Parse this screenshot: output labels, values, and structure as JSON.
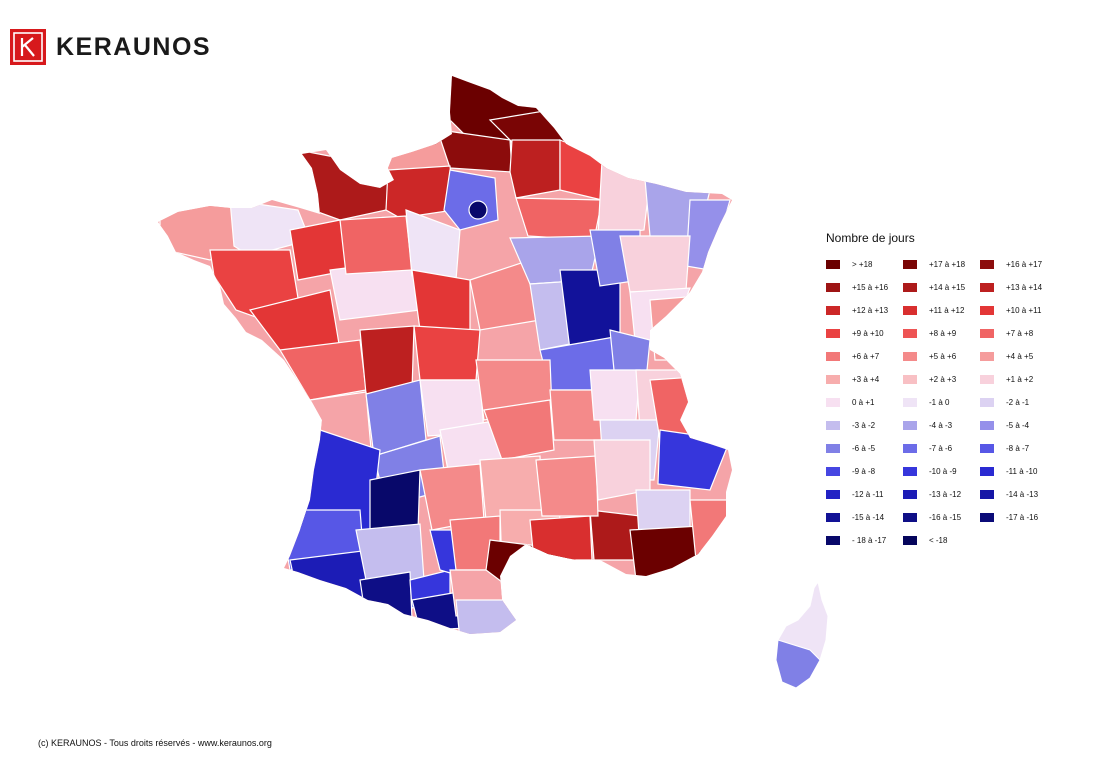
{
  "brand": {
    "name": "KERAUNOS",
    "logo_color": "#d7191c"
  },
  "legend": {
    "title": "Nombre de jours",
    "items": [
      {
        "label": "> +18",
        "color": "#6b0000"
      },
      {
        "label": "+17 à +18",
        "color": "#7a0505"
      },
      {
        "label": "+16 à +17",
        "color": "#8c0c0c"
      },
      {
        "label": "+15 à +16",
        "color": "#9e1414"
      },
      {
        "label": "+14 à +15",
        "color": "#ad1a1a"
      },
      {
        "label": "+13 à +14",
        "color": "#bd2020"
      },
      {
        "label": "+12 à +13",
        "color": "#cc2727"
      },
      {
        "label": "+11 à +12",
        "color": "#d92f2f"
      },
      {
        "label": "+10 à +11",
        "color": "#e33636"
      },
      {
        "label": "+9 à +10",
        "color": "#ea4242"
      },
      {
        "label": "+8 à +9",
        "color": "#ee5454"
      },
      {
        "label": "+7 à +8",
        "color": "#f06464"
      },
      {
        "label": "+6 à +7",
        "color": "#f27878"
      },
      {
        "label": "+5 à +6",
        "color": "#f48a8a"
      },
      {
        "label": "+4 à +5",
        "color": "#f59c9c"
      },
      {
        "label": "+3 à +4",
        "color": "#f7adad"
      },
      {
        "label": "+2 à +3",
        "color": "#f8c0c4"
      },
      {
        "label": "+1 à +2",
        "color": "#f8d1dc"
      },
      {
        "label": "0 à +1",
        "color": "#f7e0f1"
      },
      {
        "label": "-1 à 0",
        "color": "#efe4f6"
      },
      {
        "label": "-2 à -1",
        "color": "#dcd2f2"
      },
      {
        "label": "-3 à -2",
        "color": "#c4bdee"
      },
      {
        "label": "-4 à -3",
        "color": "#a9a4ea"
      },
      {
        "label": "-5 à -4",
        "color": "#9590ea"
      },
      {
        "label": "-6 à -5",
        "color": "#8080e6"
      },
      {
        "label": "-7 à -6",
        "color": "#6c6ce8"
      },
      {
        "label": "-8 à -7",
        "color": "#5757e6"
      },
      {
        "label": "-9 à -8",
        "color": "#4646e2"
      },
      {
        "label": "-10 à -9",
        "color": "#3636dc"
      },
      {
        "label": "-11 à -10",
        "color": "#2a2ad2"
      },
      {
        "label": "-12 à -11",
        "color": "#2222c4"
      },
      {
        "label": "-13 à -12",
        "color": "#1c1cb6"
      },
      {
        "label": "-14 à -13",
        "color": "#1616a6"
      },
      {
        "label": "-15 à -14",
        "color": "#121296"
      },
      {
        "label": "-16 à -15",
        "color": "#0e0e86"
      },
      {
        "label": "-17 à -16",
        "color": "#0b0b78"
      },
      {
        "label": "- 18 à -17",
        "color": "#08086a"
      },
      {
        "label": "< -18",
        "color": "#05055c"
      }
    ]
  },
  "footer": {
    "text": "(c) KERAUNOS - Tous droits réservés - www.keraunos.org"
  }
}
